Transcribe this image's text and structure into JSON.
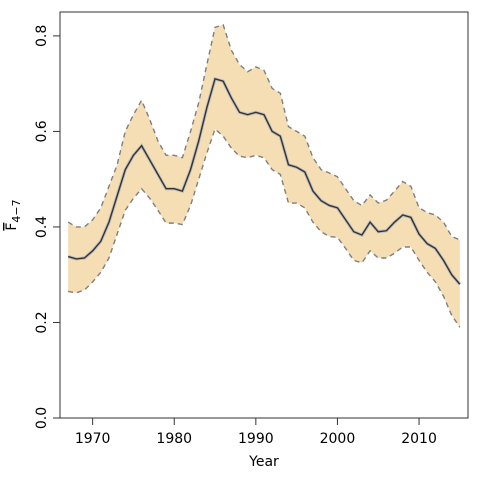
{
  "chart_data": {
    "type": "line",
    "xlabel": "Year",
    "ylabel": "F",
    "ylabel_subscript": "4−7",
    "xlim": [
      1966,
      2016
    ],
    "ylim": [
      0,
      0.85
    ],
    "x_ticks": [
      1970,
      1980,
      1990,
      2000,
      2010
    ],
    "x_tick_labels": [
      "1970",
      "1980",
      "1990",
      "2000",
      "2010"
    ],
    "y_ticks": [
      0,
      0.2,
      0.4,
      0.6,
      0.8
    ],
    "y_tick_labels": [
      "0.0",
      "0.2",
      "0.4",
      "0.6",
      "0.8"
    ],
    "grid": false,
    "colors": {
      "band": "#f5deb3",
      "line": "#333333",
      "bound": "#7f7f7f"
    },
    "x": [
      1967,
      1968,
      1969,
      1970,
      1971,
      1972,
      1973,
      1974,
      1975,
      1976,
      1977,
      1978,
      1979,
      1980,
      1981,
      1982,
      1983,
      1984,
      1985,
      1986,
      1987,
      1988,
      1989,
      1990,
      1991,
      1992,
      1993,
      1994,
      1995,
      1996,
      1997,
      1998,
      1999,
      2000,
      2001,
      2002,
      2003,
      2004,
      2005,
      2006,
      2007,
      2008,
      2009,
      2010,
      2011,
      2012,
      2013,
      2014,
      2015
    ],
    "series": [
      {
        "role": "estimate",
        "values": [
          0.338,
          0.333,
          0.335,
          0.35,
          0.37,
          0.41,
          0.465,
          0.52,
          0.55,
          0.57,
          0.54,
          0.51,
          0.48,
          0.48,
          0.475,
          0.52,
          0.58,
          0.65,
          0.71,
          0.705,
          0.67,
          0.64,
          0.635,
          0.64,
          0.635,
          0.6,
          0.59,
          0.53,
          0.525,
          0.515,
          0.475,
          0.455,
          0.445,
          0.44,
          0.415,
          0.39,
          0.383,
          0.41,
          0.39,
          0.392,
          0.41,
          0.425,
          0.42,
          0.385,
          0.365,
          0.355,
          0.33,
          0.3,
          0.28
        ]
      },
      {
        "role": "upper",
        "values": [
          0.41,
          0.4,
          0.4,
          0.415,
          0.44,
          0.485,
          0.53,
          0.6,
          0.635,
          0.665,
          0.625,
          0.58,
          0.55,
          0.55,
          0.545,
          0.6,
          0.66,
          0.74,
          0.818,
          0.823,
          0.77,
          0.74,
          0.725,
          0.735,
          0.728,
          0.69,
          0.68,
          0.61,
          0.6,
          0.59,
          0.545,
          0.52,
          0.513,
          0.505,
          0.48,
          0.455,
          0.445,
          0.467,
          0.45,
          0.456,
          0.475,
          0.495,
          0.485,
          0.44,
          0.43,
          0.425,
          0.41,
          0.38,
          0.373
        ]
      },
      {
        "role": "lower",
        "values": [
          0.265,
          0.262,
          0.268,
          0.285,
          0.305,
          0.335,
          0.385,
          0.435,
          0.46,
          0.48,
          0.46,
          0.435,
          0.408,
          0.408,
          0.405,
          0.445,
          0.5,
          0.555,
          0.605,
          0.59,
          0.565,
          0.548,
          0.545,
          0.55,
          0.545,
          0.52,
          0.51,
          0.45,
          0.45,
          0.44,
          0.41,
          0.39,
          0.38,
          0.378,
          0.355,
          0.33,
          0.325,
          0.35,
          0.335,
          0.335,
          0.345,
          0.358,
          0.358,
          0.33,
          0.305,
          0.285,
          0.255,
          0.215,
          0.19
        ]
      }
    ]
  }
}
